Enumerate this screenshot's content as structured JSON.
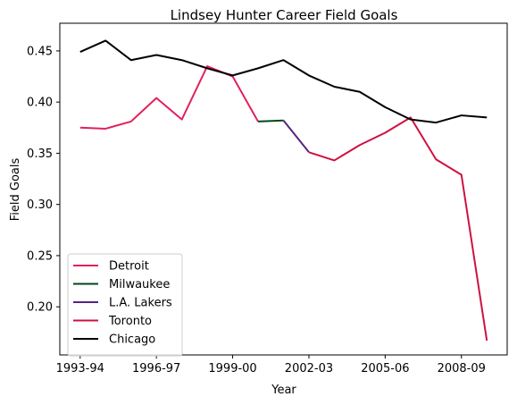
{
  "chart_data": {
    "type": "line",
    "title": "Lindsey Hunter Career Field Goals",
    "xlabel": "Year",
    "ylabel": "Field Goals",
    "x": [
      "1993-94",
      "1994-95",
      "1995-96",
      "1996-97",
      "1997-98",
      "1998-99",
      "1999-00",
      "2000-01",
      "2001-02",
      "2002-03",
      "2003-04",
      "2004-05",
      "2005-06",
      "2006-07",
      "2007-08",
      "2008-09",
      "2009-10"
    ],
    "xticks": [
      "1993-94",
      "1996-97",
      "1999-00",
      "2002-03",
      "2005-06",
      "2008-09"
    ],
    "yticks": [
      "0.20",
      "0.25",
      "0.30",
      "0.35",
      "0.40",
      "0.45"
    ],
    "ylim": [
      0.153,
      0.477
    ],
    "legend_position": "lower left",
    "grid": false,
    "series": [
      {
        "name": "Detroit",
        "color": "#e2215a",
        "points": [
          [
            "1993-94",
            0.375
          ],
          [
            "1994-95",
            0.374
          ],
          [
            "1995-96",
            0.381
          ],
          [
            "1996-97",
            0.404
          ],
          [
            "1997-98",
            0.383
          ],
          [
            "1998-99",
            0.435
          ],
          [
            "1999-00",
            0.425
          ],
          [
            "2000-01",
            0.381
          ]
        ]
      },
      {
        "name": "Milwaukee",
        "color": "#00471b",
        "points": [
          [
            "2000-01",
            0.381
          ],
          [
            "2001-02",
            0.382
          ]
        ]
      },
      {
        "name": "L.A. Lakers",
        "color": "#552583",
        "points": [
          [
            "2001-02",
            0.382
          ],
          [
            "2002-03",
            0.351
          ]
        ]
      },
      {
        "name": "Toronto",
        "color": "#ce1141",
        "points": [
          [
            "2002-03",
            0.351
          ],
          [
            "2003-04",
            0.343
          ],
          [
            "2004-05",
            0.358
          ],
          [
            "2005-06",
            0.37
          ],
          [
            "2006-07",
            0.385
          ],
          [
            "2007-08",
            0.344
          ],
          [
            "2008-09",
            0.329
          ],
          [
            "2009-10",
            0.167
          ]
        ]
      },
      {
        "name": "Chicago",
        "color": "#000000",
        "points": [
          [
            "1993-94",
            0.449
          ],
          [
            "1994-95",
            0.46
          ],
          [
            "1995-96",
            0.441
          ],
          [
            "1996-97",
            0.446
          ],
          [
            "1997-98",
            0.441
          ],
          [
            "1998-99",
            0.433
          ],
          [
            "1999-00",
            0.426
          ],
          [
            "2000-01",
            0.433
          ],
          [
            "2001-02",
            0.441
          ],
          [
            "2002-03",
            0.426
          ],
          [
            "2003-04",
            0.415
          ],
          [
            "2004-05",
            0.41
          ],
          [
            "2005-06",
            0.395
          ],
          [
            "2006-07",
            0.383
          ],
          [
            "2007-08",
            0.38
          ],
          [
            "2008-09",
            0.387
          ],
          [
            "2009-10",
            0.385
          ]
        ]
      }
    ]
  }
}
